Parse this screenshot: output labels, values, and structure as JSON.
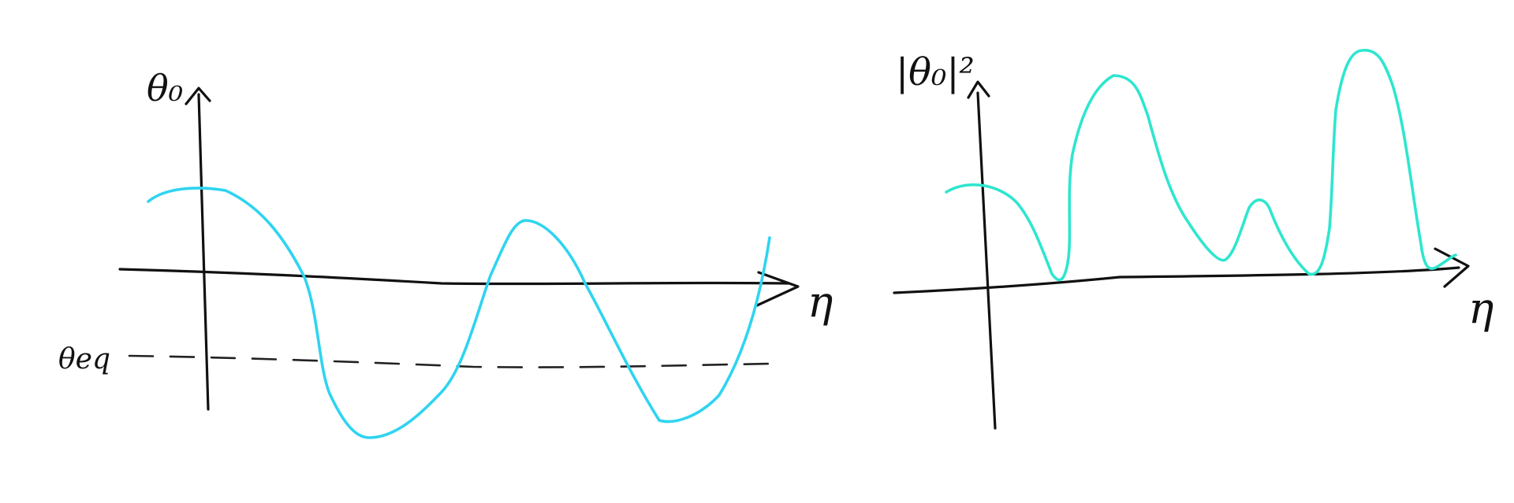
{
  "colors": {
    "ink": "#111111",
    "wave_left": "#2fd4f0",
    "wave_right": "#2ee6cf"
  },
  "left_panel": {
    "y_axis_label": "θ₀",
    "x_axis_label": "η",
    "reference_label": "θeq"
  },
  "right_panel": {
    "y_axis_label": "|θ₀|²",
    "x_axis_label": "η"
  }
}
